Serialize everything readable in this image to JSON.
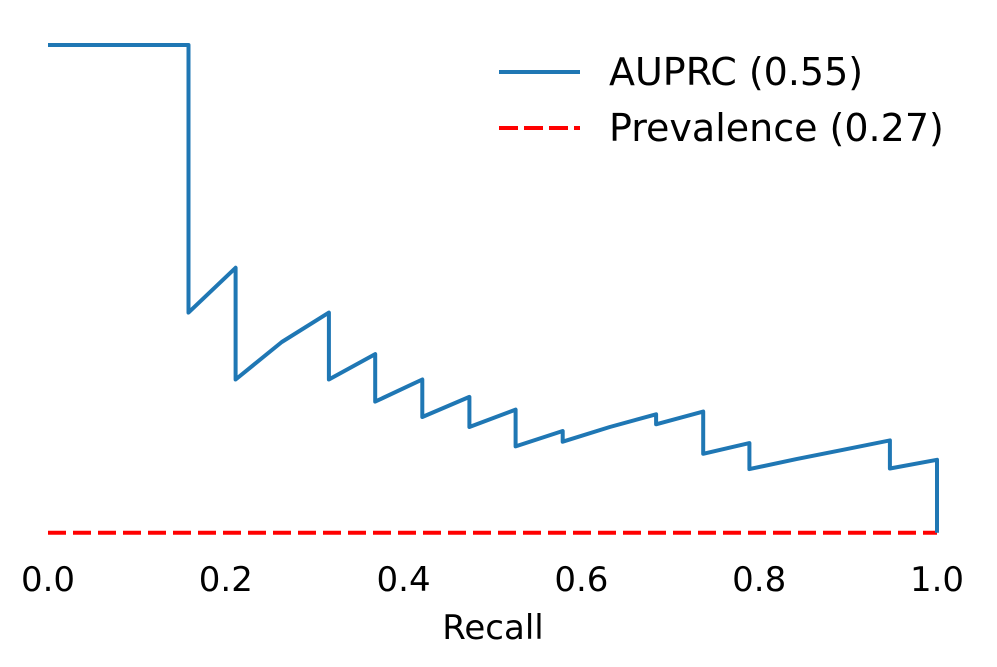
{
  "chart_data": {
    "type": "line",
    "title": "",
    "xlabel": "Recall",
    "ylabel": "",
    "xlim": [
      0.0,
      1.0
    ],
    "x_ticks": [
      "0.0",
      "0.2",
      "0.4",
      "0.6",
      "0.8",
      "1.0"
    ],
    "grid": false,
    "legend_position": "upper right",
    "auprc": 0.55,
    "prevalence": 0.27,
    "series": [
      {
        "name": "AUPRC (0.55)",
        "color": "#1f77b4",
        "style": "solid",
        "points": [
          [
            0.0,
            1.0
          ],
          [
            0.053,
            1.0
          ],
          [
            0.105,
            1.0
          ],
          [
            0.158,
            1.0
          ],
          [
            0.158,
            0.75
          ],
          [
            0.158,
            0.6
          ],
          [
            0.211,
            0.667
          ],
          [
            0.211,
            0.571
          ],
          [
            0.211,
            0.5
          ],
          [
            0.263,
            0.556
          ],
          [
            0.316,
            0.6
          ],
          [
            0.316,
            0.545
          ],
          [
            0.316,
            0.5
          ],
          [
            0.368,
            0.538
          ],
          [
            0.368,
            0.5
          ],
          [
            0.368,
            0.467
          ],
          [
            0.421,
            0.5
          ],
          [
            0.421,
            0.471
          ],
          [
            0.421,
            0.444
          ],
          [
            0.474,
            0.474
          ],
          [
            0.474,
            0.45
          ],
          [
            0.474,
            0.429
          ],
          [
            0.526,
            0.455
          ],
          [
            0.526,
            0.417
          ],
          [
            0.526,
            0.4
          ],
          [
            0.579,
            0.423
          ],
          [
            0.579,
            0.407
          ],
          [
            0.632,
            0.429
          ],
          [
            0.684,
            0.448
          ],
          [
            0.684,
            0.433
          ],
          [
            0.737,
            0.452
          ],
          [
            0.737,
            0.389
          ],
          [
            0.789,
            0.405
          ],
          [
            0.789,
            0.366
          ],
          [
            0.842,
            0.381
          ],
          [
            0.895,
            0.395
          ],
          [
            0.947,
            0.409
          ],
          [
            0.947,
            0.367
          ],
          [
            1.0,
            0.38
          ],
          [
            1.0,
            0.271
          ]
        ]
      },
      {
        "name": "Prevalence (0.27)",
        "color": "#ff0000",
        "style": "dashed",
        "points": [
          [
            0.0,
            0.271
          ],
          [
            1.0,
            0.271
          ]
        ]
      }
    ]
  }
}
